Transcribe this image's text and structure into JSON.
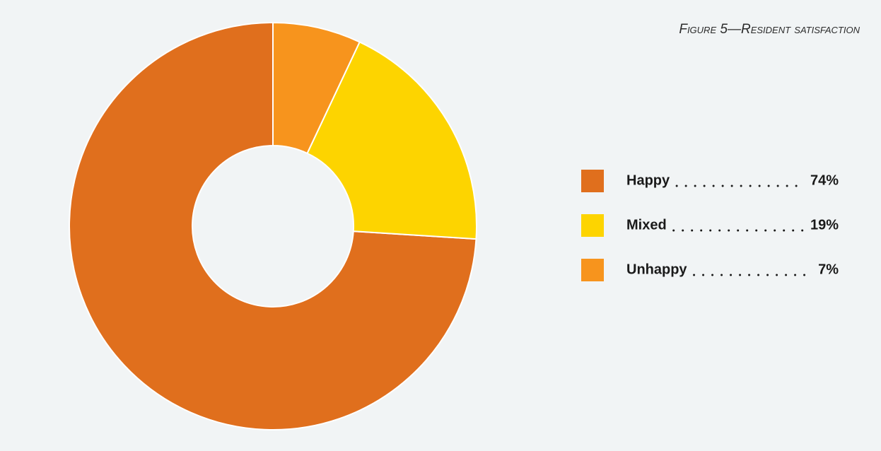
{
  "chart_data": {
    "type": "donut",
    "title": "Figure 5—Resident satisfaction",
    "categories": [
      "Happy",
      "Mixed",
      "Unhappy"
    ],
    "values": [
      74,
      19,
      7
    ],
    "value_labels": [
      "74%",
      "19%",
      "7%"
    ],
    "colors": [
      "#e06f1d",
      "#fdd400",
      "#f7941d"
    ]
  }
}
